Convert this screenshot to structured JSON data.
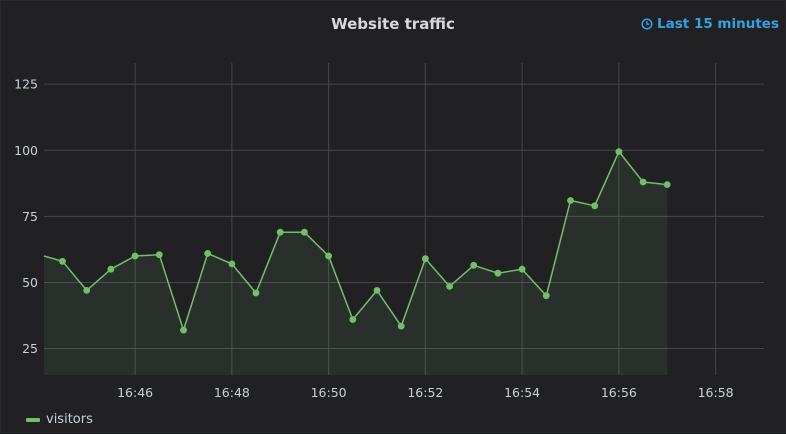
{
  "panel": {
    "title": "Website traffic",
    "time_range_label": "Last 15 minutes",
    "time_range_icon": "clock-icon"
  },
  "colors": {
    "series": "#73bf69",
    "grid": "#464649",
    "time_range": "#33a2e5"
  },
  "chart_data": {
    "type": "line",
    "title": "Website traffic",
    "xlabel": "",
    "ylabel": "",
    "x_range": [
      "16:44:07",
      "16:59:00"
    ],
    "ylim": [
      15,
      133
    ],
    "x_ticks": [
      "16:46",
      "16:48",
      "16:50",
      "16:52",
      "16:54",
      "16:56",
      "16:58"
    ],
    "y_ticks": [
      25,
      50,
      75,
      100,
      125
    ],
    "grid": true,
    "legend_position": "bottom-left",
    "area_fill": true,
    "series": [
      {
        "name": "visitors",
        "x": [
          "16:44:07",
          "16:44:30",
          "16:45:00",
          "16:45:30",
          "16:46:00",
          "16:46:30",
          "16:47:00",
          "16:47:30",
          "16:48:00",
          "16:48:30",
          "16:49:00",
          "16:49:30",
          "16:50:00",
          "16:50:30",
          "16:51:00",
          "16:51:30",
          "16:52:00",
          "16:52:30",
          "16:53:00",
          "16:53:30",
          "16:54:00",
          "16:54:30",
          "16:55:00",
          "16:55:30",
          "16:56:00",
          "16:56:30",
          "16:57:00"
        ],
        "values": [
          60,
          58,
          47,
          55,
          60,
          60.5,
          32,
          61,
          57,
          46,
          69,
          69,
          60,
          36,
          47,
          33.5,
          59,
          48.5,
          56.5,
          53.5,
          55,
          45,
          81,
          79,
          99.5,
          88,
          87
        ]
      }
    ]
  }
}
